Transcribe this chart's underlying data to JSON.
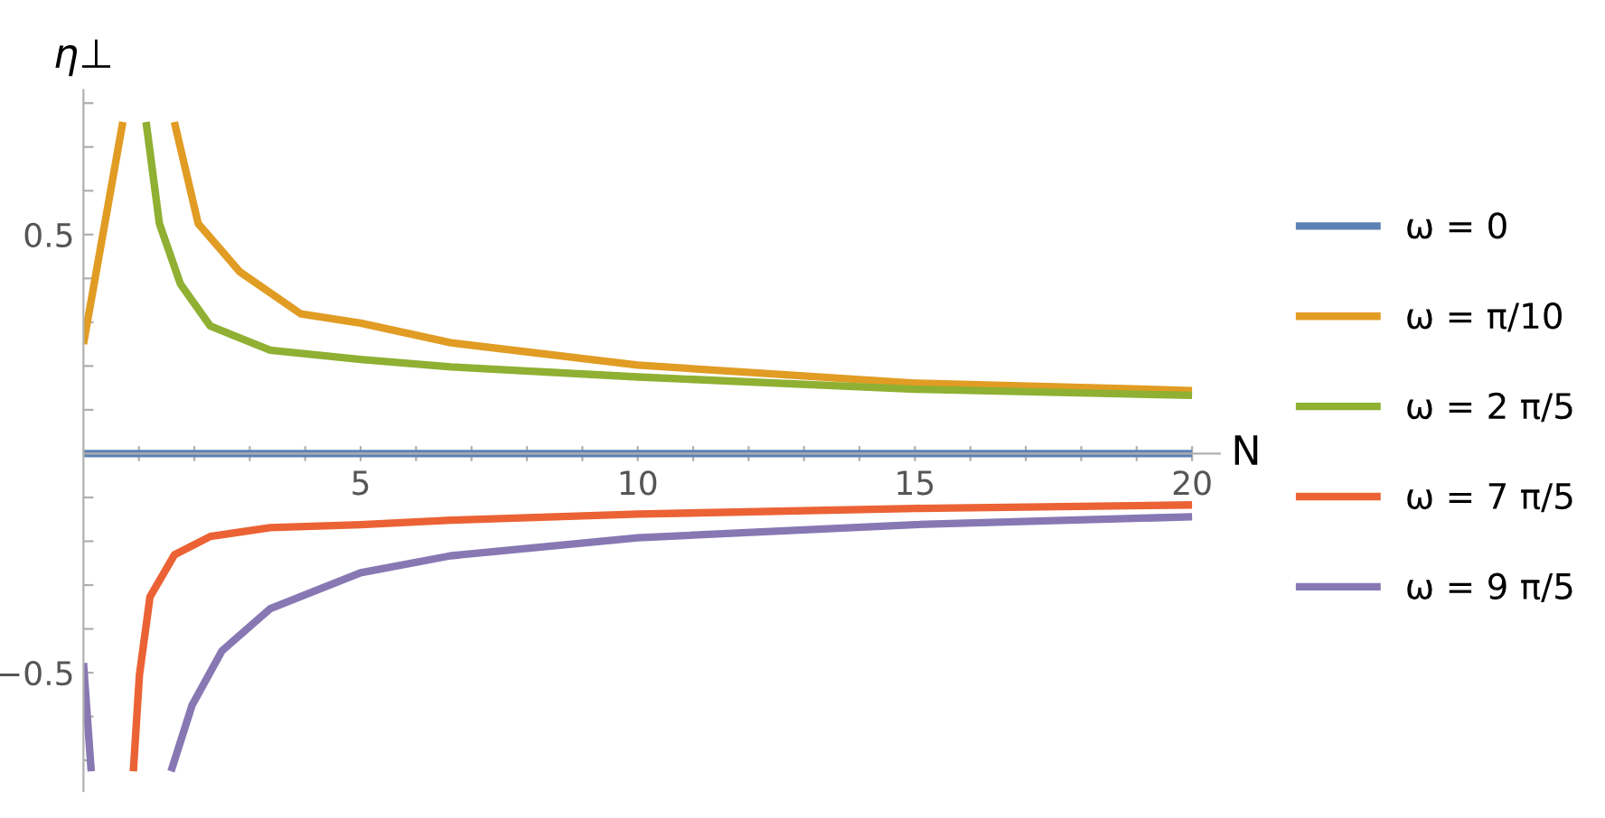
{
  "chart_data": {
    "type": "line",
    "xlabel": "N",
    "ylabel": "η⊥",
    "xlim": [
      0,
      20.5
    ],
    "ylim": [
      -0.77,
      0.83
    ],
    "xticks": [
      {
        "value": 1,
        "label": null
      },
      {
        "value": 2,
        "label": null
      },
      {
        "value": 3,
        "label": null
      },
      {
        "value": 4,
        "label": null
      },
      5,
      {
        "value": 6,
        "label": null
      },
      {
        "value": 7,
        "label": null
      },
      {
        "value": 8,
        "label": null
      },
      {
        "value": 9,
        "label": null
      },
      10,
      {
        "value": 11,
        "label": null
      },
      {
        "value": 12,
        "label": null
      },
      {
        "value": 13,
        "label": null
      },
      {
        "value": 14,
        "label": null
      },
      15,
      {
        "value": 16,
        "label": null
      },
      {
        "value": 17,
        "label": null
      },
      {
        "value": 18,
        "label": null
      },
      {
        "value": 19,
        "label": null
      },
      20
    ],
    "yticks": [
      {
        "value": -0.7,
        "label": null
      },
      {
        "value": -0.6,
        "label": null
      },
      {
        "value": -0.5,
        "label": "−0.5"
      },
      {
        "value": -0.4,
        "label": null
      },
      {
        "value": -0.3,
        "label": null
      },
      {
        "value": -0.2,
        "label": null
      },
      {
        "value": -0.1,
        "label": null
      },
      {
        "value": 0.1,
        "label": null
      },
      {
        "value": 0.2,
        "label": null
      },
      {
        "value": 0.3,
        "label": null
      },
      {
        "value": 0.4,
        "label": null
      },
      0.5,
      {
        "value": 0.6,
        "label": null
      },
      {
        "value": 0.7,
        "label": null
      },
      {
        "value": 0.8,
        "label": null
      }
    ],
    "grid": false,
    "legend": "right",
    "marker": "none",
    "line_style": "solid",
    "series": [
      {
        "name": "ω = 0",
        "color": "#5e81b5",
        "x": [
          0,
          20
        ],
        "values": [
          0,
          0
        ]
      },
      {
        "name": "ω = π/10",
        "color": "#e19c24",
        "x": [
          0,
          0.35,
          0.71,
          1.2,
          1.64,
          2.07,
          2.82,
          3.92,
          5,
          6.63,
          10,
          15,
          20
        ],
        "values": [
          0.25,
          0.5,
          0.757,
          null,
          0.757,
          0.525,
          0.415,
          0.319,
          0.298,
          0.253,
          0.202,
          0.161,
          0.144
        ]
      },
      {
        "name": "ω = 2 π/5",
        "color": "#8fb032",
        "x": [
          1.13,
          1.37,
          1.75,
          2.29,
          3.37,
          5,
          6.63,
          10,
          15,
          20
        ],
        "values": [
          0.757,
          0.525,
          0.387,
          0.291,
          0.236,
          0.215,
          0.198,
          0.175,
          0.147,
          0.133
        ]
      },
      {
        "name": "ω = 7 π/5",
        "color": "#eb6235",
        "x": [
          0.9,
          1.01,
          1.2,
          1.64,
          2.29,
          3.37,
          5,
          6.63,
          10,
          15,
          20
        ],
        "values": [
          -0.725,
          -0.505,
          -0.327,
          -0.231,
          -0.189,
          -0.169,
          -0.162,
          -0.152,
          -0.138,
          -0.125,
          -0.117
        ]
      },
      {
        "name": "ω = 9 π/5",
        "color": "#8778b3",
        "x": [
          0,
          0.14,
          0.8,
          1.58,
          1.96,
          2.5,
          3.37,
          5,
          6.63,
          10,
          15,
          20
        ],
        "values": [
          -0.478,
          -0.725,
          null,
          -0.725,
          -0.574,
          -0.45,
          -0.354,
          -0.272,
          -0.233,
          -0.192,
          -0.162,
          -0.144
        ]
      }
    ]
  }
}
